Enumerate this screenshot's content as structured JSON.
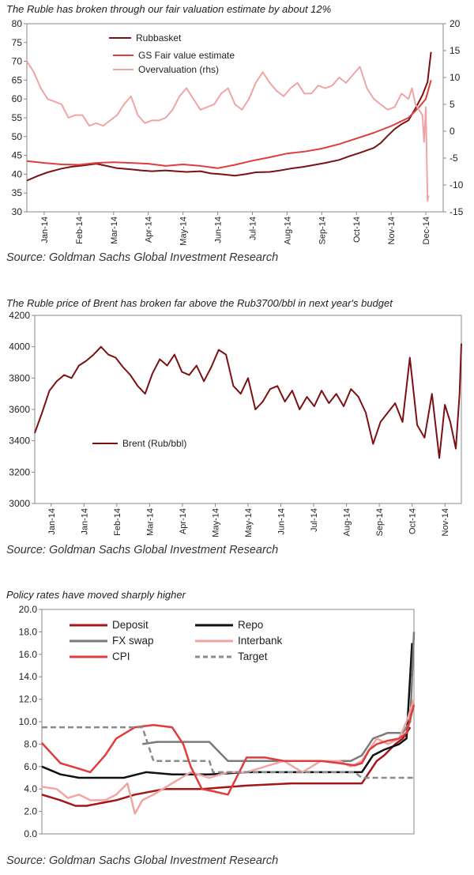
{
  "chart_data": [
    {
      "type": "line",
      "title": "The Ruble has broken through our fair valuation estimate by about 12%",
      "source": "Source: Goldman Sachs Global Investment Research",
      "ylim": [
        30,
        80
      ],
      "yticks": [
        "80",
        "75",
        "70",
        "65",
        "60",
        "55",
        "50",
        "45",
        "40",
        "35",
        "30"
      ],
      "y2lim": [
        -15,
        20
      ],
      "y2ticks": [
        "20",
        "15",
        "10",
        "5",
        "0",
        "-5",
        "-10",
        "-15"
      ],
      "xlim": [
        0,
        12
      ],
      "categories": [
        "Jan-14",
        "Feb-14",
        "Mar-14",
        "Apr-14",
        "May-14",
        "Jun-14",
        "Jul-14",
        "Aug-14",
        "Sep-14",
        "Oct-14",
        "Nov-14",
        "Dec-14"
      ],
      "legend": [
        "Rubbasket",
        "GS Fair value estimate",
        "Overvaluation (rhs)"
      ],
      "series": [
        {
          "name": "Rubbasket",
          "axis": "left",
          "color": "#7b1113",
          "x": [
            0,
            0.3,
            0.6,
            1,
            1.3,
            1.6,
            2,
            2.3,
            2.6,
            3,
            3.3,
            3.6,
            4,
            4.3,
            4.6,
            5,
            5.3,
            5.6,
            6,
            6.3,
            6.6,
            7,
            7.3,
            7.6,
            8,
            8.3,
            8.6,
            9,
            9.3,
            9.6,
            10,
            10.2,
            10.4,
            10.6,
            10.8,
            11,
            11.2,
            11.4,
            11.55,
            11.65
          ],
          "y": [
            38.3,
            39.5,
            40.5,
            41.5,
            42,
            42.3,
            42.8,
            42.2,
            41.6,
            41.3,
            41,
            40.8,
            41,
            40.8,
            40.6,
            40.8,
            40.2,
            40,
            39.6,
            40,
            40.5,
            40.6,
            41,
            41.5,
            42,
            42.5,
            43,
            43.8,
            44.8,
            45.7,
            47,
            48.3,
            50.2,
            52,
            53.3,
            54.3,
            57.5,
            61,
            64.5,
            72.5
          ]
        },
        {
          "name": "GS Fair value estimate",
          "axis": "left",
          "color": "#e03c3c",
          "x": [
            0,
            0.5,
            1,
            1.5,
            2,
            2.5,
            3,
            3.5,
            4,
            4.5,
            5,
            5.5,
            6,
            6.5,
            7,
            7.5,
            8,
            8.5,
            9,
            9.5,
            10,
            10.5,
            11,
            11.3,
            11.5,
            11.65
          ],
          "y": [
            43.5,
            43,
            42.6,
            42.5,
            43,
            43.2,
            43,
            42.8,
            42.2,
            42.6,
            42.2,
            41.6,
            42.5,
            43.6,
            44.5,
            45.5,
            46,
            46.8,
            48,
            49.5,
            51,
            52.8,
            55,
            57.8,
            60,
            65
          ]
        },
        {
          "name": "Overvaluation (rhs)",
          "axis": "right",
          "color": "#f0a5a5",
          "x": [
            0,
            0.2,
            0.4,
            0.6,
            0.8,
            1,
            1.2,
            1.4,
            1.6,
            1.8,
            2,
            2.2,
            2.4,
            2.6,
            2.8,
            3,
            3.2,
            3.4,
            3.6,
            3.8,
            4,
            4.2,
            4.4,
            4.6,
            4.8,
            5,
            5.2,
            5.4,
            5.6,
            5.8,
            6,
            6.2,
            6.4,
            6.6,
            6.8,
            7,
            7.2,
            7.4,
            7.6,
            7.8,
            8,
            8.2,
            8.4,
            8.6,
            8.8,
            9,
            9.2,
            9.4,
            9.6,
            9.8,
            10,
            10.2,
            10.4,
            10.6,
            10.8,
            11,
            11.1,
            11.2,
            11.3,
            11.4,
            11.45,
            11.5,
            11.55,
            11.58
          ],
          "y": [
            13,
            11,
            8,
            6,
            5.5,
            5,
            2.5,
            3,
            3,
            1,
            1.5,
            1,
            2,
            3,
            5,
            6.5,
            3,
            1.5,
            2,
            2,
            2.5,
            4,
            6.5,
            8,
            6,
            4,
            4.5,
            5,
            7,
            8,
            5,
            4,
            6,
            9,
            11,
            9,
            7.5,
            6.5,
            8,
            9,
            7,
            7,
            8.5,
            8,
            8.5,
            10,
            9,
            10.5,
            12,
            8,
            6,
            5,
            4,
            4.5,
            7,
            6,
            8,
            5,
            4,
            3,
            -2,
            4.5,
            -13,
            -12
          ]
        }
      ]
    },
    {
      "type": "line",
      "title": "The Ruble price of Brent has broken far above the Rub3700/bbl in next year's budget",
      "source": "Source: Goldman Sachs Global Investment Research",
      "ylim": [
        3000,
        4200
      ],
      "yticks": [
        "4200",
        "4000",
        "3800",
        "3600",
        "3400",
        "3200",
        "3000"
      ],
      "xlim": [
        0,
        11.6
      ],
      "categories": [
        "Jan-14",
        "Jan-14",
        "Feb-14",
        "Mar-14",
        "Apr-14",
        "May-14",
        "May-14",
        "Jun-14",
        "Jul-14",
        "Aug-14",
        "Sep-14",
        "Oct-14",
        "Nov-14"
      ],
      "legend": [
        "Brent (Rub/bbl)"
      ],
      "series": [
        {
          "name": "Brent (Rub/bbl)",
          "color": "#7b1113",
          "x": [
            0,
            0.2,
            0.4,
            0.6,
            0.8,
            1,
            1.2,
            1.4,
            1.6,
            1.8,
            2,
            2.2,
            2.4,
            2.6,
            2.8,
            3,
            3.2,
            3.4,
            3.6,
            3.8,
            4,
            4.2,
            4.4,
            4.6,
            4.8,
            5,
            5.2,
            5.4,
            5.6,
            5.8,
            6,
            6.2,
            6.4,
            6.6,
            6.8,
            7,
            7.2,
            7.4,
            7.6,
            7.8,
            8,
            8.2,
            8.4,
            8.6,
            8.8,
            9,
            9.2,
            9.4,
            9.6,
            9.8,
            10,
            10.2,
            10.4,
            10.6,
            10.8,
            11,
            11.15,
            11.3,
            11.45,
            11.55,
            11.6
          ],
          "y": [
            3450,
            3580,
            3720,
            3780,
            3820,
            3800,
            3880,
            3910,
            3950,
            4000,
            3950,
            3930,
            3870,
            3820,
            3750,
            3700,
            3830,
            3920,
            3880,
            3950,
            3840,
            3820,
            3880,
            3780,
            3870,
            3980,
            3950,
            3750,
            3700,
            3800,
            3600,
            3650,
            3730,
            3750,
            3650,
            3720,
            3600,
            3680,
            3620,
            3720,
            3640,
            3700,
            3620,
            3730,
            3680,
            3580,
            3380,
            3520,
            3580,
            3640,
            3520,
            3930,
            3500,
            3420,
            3700,
            3290,
            3630,
            3520,
            3350,
            3700,
            4020
          ]
        }
      ]
    },
    {
      "type": "line",
      "title": "Policy rates have moved sharply higher",
      "source": "Source: Goldman Sachs Global Investment Research",
      "ylim": [
        0,
        20
      ],
      "yticks": [
        "20.0",
        "18.0",
        "16.0",
        "14.0",
        "12.0",
        "10.0",
        "8.0",
        "6.0",
        "4.0",
        "2.0",
        "0.0"
      ],
      "xlim": [
        0,
        1
      ],
      "legend": [
        "Deposit",
        "Repo",
        "FX swap",
        "Interbank",
        "CPI",
        "Target"
      ],
      "series": [
        {
          "name": "Deposit",
          "color": "#a3171b",
          "x": [
            0,
            0.05,
            0.09,
            0.12,
            0.2,
            0.25,
            0.33,
            0.43,
            0.55,
            0.67,
            0.8,
            0.86,
            0.9,
            0.92,
            0.95,
            0.97,
            0.99
          ],
          "y": [
            3.5,
            3,
            2.5,
            2.5,
            3,
            3.5,
            4,
            4,
            4.3,
            4.5,
            4.5,
            4.5,
            6.5,
            7,
            8,
            8.5,
            9.5
          ]
        },
        {
          "name": "Repo",
          "color": "#111111",
          "x": [
            0,
            0.05,
            0.1,
            0.12,
            0.22,
            0.28,
            0.35,
            0.45,
            0.55,
            0.65,
            0.75,
            0.84,
            0.86,
            0.89,
            0.92,
            0.96,
            0.98,
            0.995
          ],
          "y": [
            6,
            5.3,
            5,
            5,
            5,
            5.5,
            5.3,
            5.3,
            5.5,
            5.5,
            5.5,
            5.5,
            5.5,
            7,
            7.5,
            8,
            8.5,
            17
          ]
        },
        {
          "name": "FX swap",
          "color": "#7a7a7a",
          "x": [
            0.27,
            0.31,
            0.45,
            0.5,
            0.65,
            0.72,
            0.8,
            0.83,
            0.86,
            0.89,
            0.93,
            0.97,
            0.99,
            1
          ],
          "y": [
            8,
            8.2,
            8.2,
            6.5,
            6.5,
            6.5,
            6.5,
            6.5,
            7,
            8.5,
            9,
            9,
            10,
            18
          ]
        },
        {
          "name": "Interbank",
          "color": "#f0a5a5",
          "x": [
            0,
            0.04,
            0.07,
            0.1,
            0.13,
            0.17,
            0.2,
            0.23,
            0.25,
            0.27,
            0.3,
            0.35,
            0.4,
            0.45,
            0.5,
            0.55,
            0.6,
            0.65,
            0.7,
            0.75,
            0.8,
            0.83,
            0.86,
            0.9,
            0.93,
            0.96,
            0.98,
            1
          ],
          "y": [
            4.2,
            4,
            3.2,
            3.5,
            3,
            3,
            3.5,
            4.5,
            1.8,
            3,
            3.5,
            4.5,
            5.5,
            5,
            5.5,
            5.5,
            6,
            6.5,
            5.5,
            6.5,
            6.5,
            6,
            6.5,
            8.5,
            8,
            8.5,
            10,
            12
          ]
        },
        {
          "name": "CPI",
          "color": "#e03c3c",
          "x": [
            0,
            0.05,
            0.1,
            0.13,
            0.17,
            0.2,
            0.25,
            0.3,
            0.35,
            0.38,
            0.4,
            0.43,
            0.46,
            0.5,
            0.55,
            0.6,
            0.65,
            0.7,
            0.75,
            0.8,
            0.84,
            0.86,
            0.88,
            0.9,
            0.93,
            0.96,
            0.98,
            1
          ],
          "y": [
            8.1,
            6.3,
            5.8,
            5.5,
            7,
            8.5,
            9.5,
            9.7,
            9.5,
            8,
            6,
            4,
            3.8,
            3.5,
            6.8,
            6.8,
            6.5,
            6.5,
            6.5,
            6.3,
            6.1,
            6.3,
            7.5,
            8,
            8.3,
            8.5,
            9,
            11.5
          ]
        },
        {
          "name": "Target",
          "color": "#8a8a8a",
          "dashed": true,
          "x": [
            0,
            0.27,
            0.3,
            0.45,
            0.46,
            0.84,
            0.86,
            1
          ],
          "y": [
            9.5,
            9.5,
            6.5,
            6.5,
            5.5,
            5.5,
            5,
            5
          ]
        }
      ]
    }
  ]
}
